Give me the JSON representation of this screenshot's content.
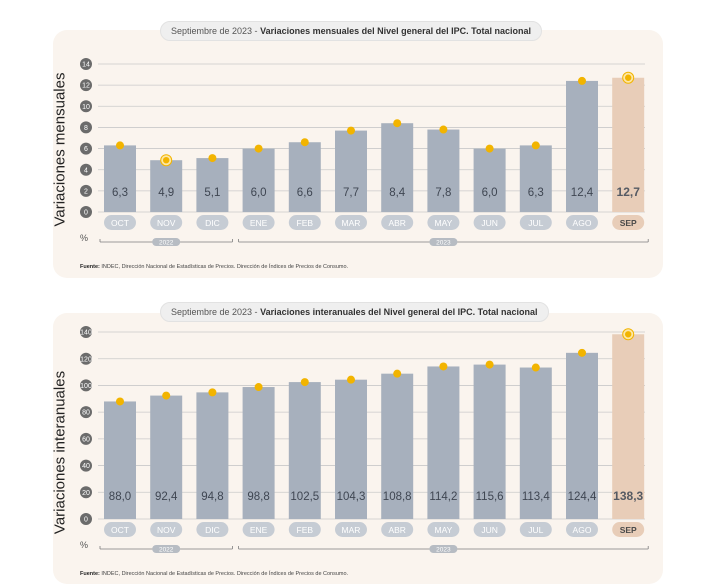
{
  "charts_meta": [
    {
      "title_prefix": "Septiembre de 2023 - ",
      "title_bold": "Variaciones mensuales del Nivel general del IPC. Total nacional",
      "ylabel": "Variaciones mensuales",
      "unit": "%",
      "source_label": "Fuente:",
      "source_text": " INDEC, Dirección Nacional de Estadísticas de Precios. Dirección de Índices de Precios de Consumo."
    },
    {
      "title_prefix": "Septiembre de 2023 - ",
      "title_bold": "Variaciones interanuales del Nivel general del IPC. Total nacional",
      "ylabel": "Variaciones interanuales",
      "unit": "%",
      "source_label": "Fuente:",
      "source_text": " INDEC, Dirección Nacional de Estadísticas de Precios. Dirección de Índices de Precios de Consumo."
    }
  ],
  "colors": {
    "bar": "#a7b0bd",
    "bar_highlight": "#e8cdb8",
    "marker": "#f2b400",
    "tick_pill": "#c6ccd4",
    "year_pill": "#b7bcc3"
  },
  "chart_data": [
    {
      "type": "bar",
      "categories": [
        "OCT",
        "NOV",
        "DIC",
        "ENE",
        "FEB",
        "MAR",
        "ABR",
        "MAY",
        "JUN",
        "JUL",
        "AGO",
        "SEP"
      ],
      "values": [
        6.3,
        4.9,
        5.1,
        6.0,
        6.6,
        7.7,
        8.4,
        7.8,
        6.0,
        6.3,
        12.4,
        12.7
      ],
      "value_labels": [
        "6,3",
        "4,9",
        "5,1",
        "6,0",
        "6,6",
        "7,7",
        "8,4",
        "7,8",
        "6,0",
        "6,3",
        "12,4",
        "12,7"
      ],
      "y_ticks": [
        "0",
        "2",
        "4",
        "6",
        "8",
        "10",
        "12",
        "14"
      ],
      "ylim": [
        0,
        14
      ],
      "highlight_index": 11,
      "ring_markers": [
        1,
        11
      ],
      "years": [
        {
          "label": "2022",
          "from": 0,
          "to": 2
        },
        {
          "label": "2023",
          "from": 3,
          "to": 11
        }
      ],
      "grid": true
    },
    {
      "type": "bar",
      "categories": [
        "OCT",
        "NOV",
        "DIC",
        "ENE",
        "FEB",
        "MAR",
        "ABR",
        "MAY",
        "JUN",
        "JUL",
        "AGO",
        "SEP"
      ],
      "values": [
        88.0,
        92.4,
        94.8,
        98.8,
        102.5,
        104.3,
        108.8,
        114.2,
        115.6,
        113.4,
        124.4,
        138.3
      ],
      "value_labels": [
        "88,0",
        "92,4",
        "94,8",
        "98,8",
        "102,5",
        "104,3",
        "108,8",
        "114,2",
        "115,6",
        "113,4",
        "124,4",
        "138,3"
      ],
      "y_ticks": [
        "0",
        "20",
        "40",
        "60",
        "80",
        "100",
        "120",
        "140"
      ],
      "ylim": [
        0,
        140
      ],
      "highlight_index": 11,
      "ring_markers": [
        11
      ],
      "years": [
        {
          "label": "2022",
          "from": 0,
          "to": 2
        },
        {
          "label": "2023",
          "from": 3,
          "to": 11
        }
      ],
      "grid": true
    }
  ]
}
